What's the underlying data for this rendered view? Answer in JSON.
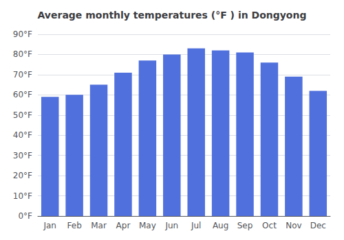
{
  "chart_data": {
    "type": "bar",
    "title": "Average monthly temperatures (°F ) in Dongyong",
    "categories": [
      "Jan",
      "Feb",
      "Mar",
      "Apr",
      "May",
      "Jun",
      "Jul",
      "Aug",
      "Sep",
      "Oct",
      "Nov",
      "Dec"
    ],
    "values": [
      59,
      60,
      65,
      71,
      77,
      80,
      83,
      82,
      81,
      76,
      69,
      62
    ],
    "ylim": [
      0,
      90
    ],
    "yticks": [
      {
        "value": 0,
        "label": "0°F"
      },
      {
        "value": 10,
        "label": "10°F"
      },
      {
        "value": 20,
        "label": "20°F"
      },
      {
        "value": 30,
        "label": "30°F"
      },
      {
        "value": 40,
        "label": "40°F"
      },
      {
        "value": 50,
        "label": "50°F"
      },
      {
        "value": 60,
        "label": "60°F"
      },
      {
        "value": 70,
        "label": "70°F"
      },
      {
        "value": 80,
        "label": "80°F"
      },
      {
        "value": 90,
        "label": "90°F"
      }
    ],
    "grid": true
  }
}
